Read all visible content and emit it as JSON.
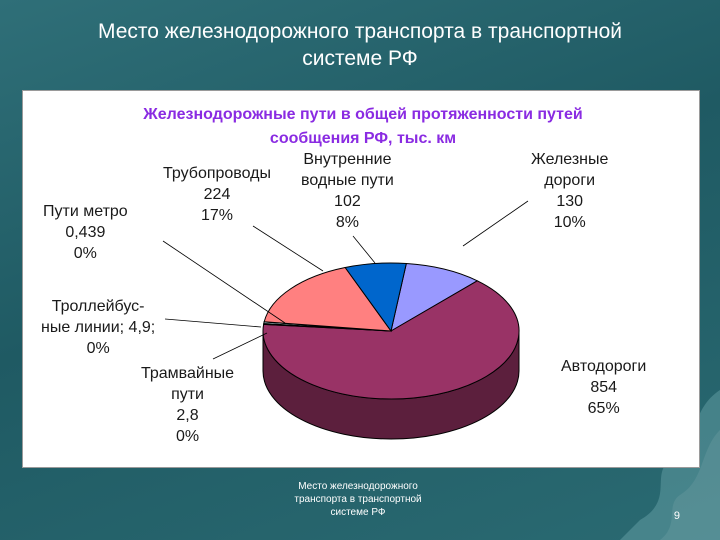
{
  "slide": {
    "title_line1": "Место железнодорожного транспорта в транспортной",
    "title_line2": "системе РФ",
    "footer_line1": "Место железнодорожного",
    "footer_line2": "транспорта в транспортной",
    "footer_line3": "системе РФ",
    "page_number": "9"
  },
  "chart_data": {
    "type": "pie",
    "title_line1": "Железнодорожные пути в общей протяженности путей",
    "title_line2": "сообщения РФ, тыс. км",
    "slices": [
      {
        "label": "Железные дороги",
        "value": 130,
        "percent": 10,
        "color": "#9999ff"
      },
      {
        "label": "Автодороги",
        "value": 854,
        "percent": 65,
        "color": "#993366"
      },
      {
        "label": "Трамвайные пути",
        "value": 2.8,
        "percent": 0,
        "color": "#ffffcc"
      },
      {
        "label": "Троллейбусные линии",
        "value": 4.9,
        "percent": 0,
        "color": "#ccffff"
      },
      {
        "label": "Пути метро",
        "value": 0.439,
        "percent": 0,
        "color": "#660066"
      },
      {
        "label": "Трубопроводы",
        "value": 224,
        "percent": 17,
        "color": "#ff8080"
      },
      {
        "label": "Внутренние водные пути",
        "value": 102,
        "percent": 8,
        "color": "#0066cc"
      }
    ],
    "labels": {
      "rail": [
        "Железные",
        "дороги",
        "130",
        "10%"
      ],
      "roads": [
        "Автодороги",
        "854",
        "65%"
      ],
      "tram": [
        "Трамвайные",
        "пути",
        "2,8",
        "0%"
      ],
      "trolley": [
        "Троллейбус-",
        "ные линии; 4,9;",
        "0%"
      ],
      "metro": [
        "Пути метро",
        "0,439",
        "0%"
      ],
      "pipes": [
        "Трубопроводы",
        "224",
        "17%"
      ],
      "water": [
        "Внутренние",
        "водные пути",
        "102",
        "8%"
      ]
    }
  }
}
